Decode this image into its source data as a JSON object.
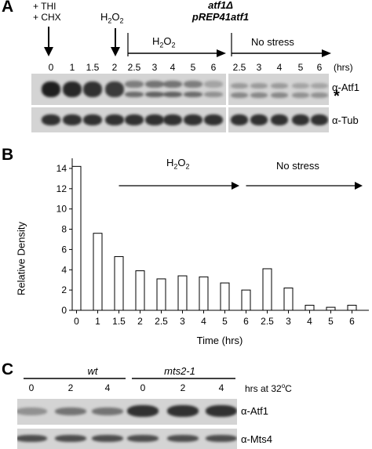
{
  "panel_a": {
    "letter": "A",
    "treatment_1": "+ THI",
    "treatment_2": "+ CHX",
    "h2o2_marker": "H2O2",
    "strain_line1": "atf1Δ",
    "strain_line2": "pREP41atf1",
    "arrow_h2o2": "H2O2",
    "arrow_nostress": "No stress",
    "timepoints_left": [
      "0",
      "1",
      "1.5",
      "2",
      "2.5",
      "3",
      "4",
      "5",
      "6"
    ],
    "timepoints_right": [
      "2.5",
      "3",
      "4",
      "5",
      "6"
    ],
    "time_unit": "(hrs)",
    "label_atf1": "α-Atf1",
    "label_star": "*",
    "label_tub": "α-Tub",
    "band_intensity_top": [
      0.95,
      0.9,
      0.85,
      0.8,
      0.45,
      0.5,
      0.5,
      0.45,
      0.25,
      0.3,
      0.3,
      0.3,
      0.25,
      0.25
    ],
    "band_intensity_tub": [
      0.85,
      0.85,
      0.85,
      0.85,
      0.85,
      0.85,
      0.85,
      0.85,
      0.85,
      0.85,
      0.85,
      0.85,
      0.85,
      0.85
    ]
  },
  "panel_b": {
    "letter": "B",
    "arrow_h2o2": "H2O2",
    "arrow_nostress": "No stress",
    "chart_data": {
      "type": "bar",
      "categories": [
        "0",
        "1",
        "1.5",
        "2",
        "2.5",
        "3",
        "4",
        "5",
        "6",
        "2.5",
        "3",
        "4",
        "5",
        "6"
      ],
      "values": [
        14.2,
        7.6,
        5.3,
        3.9,
        3.1,
        3.4,
        3.3,
        2.7,
        2.0,
        4.1,
        2.2,
        0.5,
        0.3,
        0.5
      ],
      "xlabel": "Time (hrs)",
      "ylabel": "Relative Density",
      "ylim": [
        0,
        15
      ],
      "yticks": [
        "0",
        "2",
        "4",
        "6",
        "8",
        "10",
        "12",
        "14"
      ],
      "grid": false
    }
  },
  "panel_c": {
    "letter": "C",
    "group_wt": "wt",
    "group_mts": "mts2-1",
    "lanes": [
      "0",
      "2",
      "4",
      "0",
      "2",
      "4"
    ],
    "hrs_label": "hrs at 32",
    "hrs_sup": "o",
    "hrs_unit": "C",
    "label_atf1": "α-Atf1",
    "label_mts4": "α-Mts4",
    "band_intensity_top": [
      0.35,
      0.5,
      0.5,
      0.85,
      0.85,
      0.85
    ],
    "band_intensity_bottom": [
      0.7,
      0.7,
      0.7,
      0.7,
      0.7,
      0.7
    ]
  },
  "colors": {
    "ink": "#000000",
    "blot_bg": "#d4d4d4",
    "band": "#1a1a1a"
  }
}
